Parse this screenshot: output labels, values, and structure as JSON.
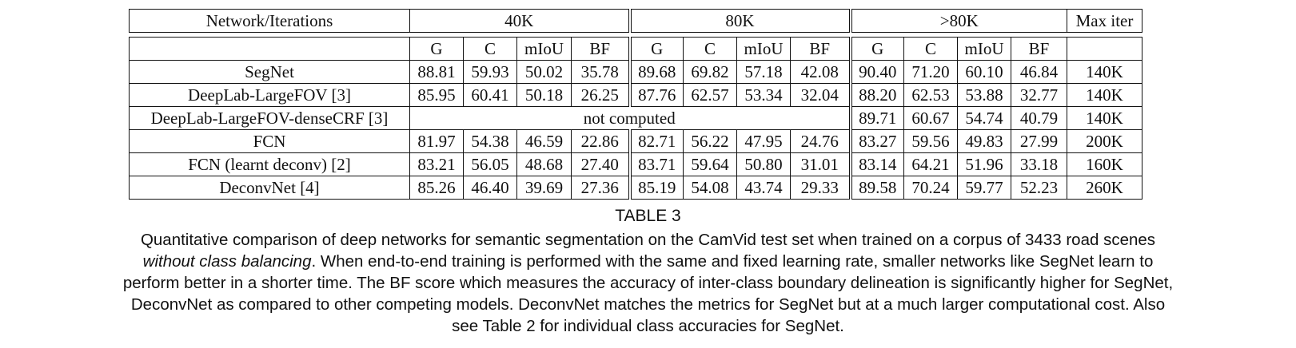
{
  "header": {
    "network_label": "Network/Iterations",
    "groups": [
      "40K",
      "80K",
      ">80K"
    ],
    "max_iter_label": "Max iter"
  },
  "metrics": [
    "G",
    "C",
    "mIoU",
    "BF"
  ],
  "rows": [
    {
      "name": "SegNet",
      "v40": [
        "88.81",
        "59.93",
        "50.02",
        "35.78"
      ],
      "v80": [
        "89.68",
        "69.82",
        "57.18",
        "42.08"
      ],
      "vgt80": [
        "90.40",
        "71.20",
        "60.10",
        "46.84"
      ],
      "max_iter": "140K"
    },
    {
      "name": "DeepLab-LargeFOV [3]",
      "v40": [
        "85.95",
        "60.41",
        "50.18",
        "26.25"
      ],
      "v80": [
        "87.76",
        "62.57",
        "53.34",
        "32.04"
      ],
      "vgt80": [
        "88.20",
        "62.53",
        "53.88",
        "32.77"
      ],
      "max_iter": "140K"
    },
    {
      "name": "DeepLab-LargeFOV-denseCRF [3]",
      "span_text": "not computed",
      "vgt80": [
        "89.71",
        "60.67",
        "54.74",
        "40.79"
      ],
      "max_iter": "140K"
    },
    {
      "name": "FCN",
      "v40": [
        "81.97",
        "54.38",
        "46.59",
        "22.86"
      ],
      "v80": [
        "82.71",
        "56.22",
        "47.95",
        "24.76"
      ],
      "vgt80": [
        "83.27",
        "59.56",
        "49.83",
        "27.99"
      ],
      "max_iter": "200K"
    },
    {
      "name": "FCN (learnt deconv) [2]",
      "v40": [
        "83.21",
        "56.05",
        "48.68",
        "27.40"
      ],
      "v80": [
        "83.71",
        "59.64",
        "50.80",
        "31.01"
      ],
      "vgt80": [
        "83.14",
        "64.21",
        "51.96",
        "33.18"
      ],
      "max_iter": "160K"
    },
    {
      "name": "DeconvNet [4]",
      "v40": [
        "85.26",
        "46.40",
        "39.69",
        "27.36"
      ],
      "v80": [
        "85.19",
        "54.08",
        "43.74",
        "29.33"
      ],
      "vgt80": [
        "89.58",
        "70.24",
        "59.77",
        "52.23"
      ],
      "max_iter": "260K"
    }
  ],
  "caption": {
    "table_number": "TABLE 3",
    "line1": "Quantitative comparison of deep networks for semantic segmentation on the CamVid test set when trained on a corpus of 3433 road scenes",
    "line2_italic": "without class balancing",
    "line2_rest": ". When end-to-end training is performed with the same and fixed learning rate, smaller networks like SegNet learn to",
    "line3": "perform better in a shorter time. The BF score which measures the accuracy of inter-class boundary delineation is significantly higher for SegNet,",
    "line4": "DeconvNet as compared to other competing models. DeconvNet matches the metrics for SegNet but at a much larger computational cost. Also",
    "line5": "see Table 2 for individual class accuracies for SegNet."
  }
}
